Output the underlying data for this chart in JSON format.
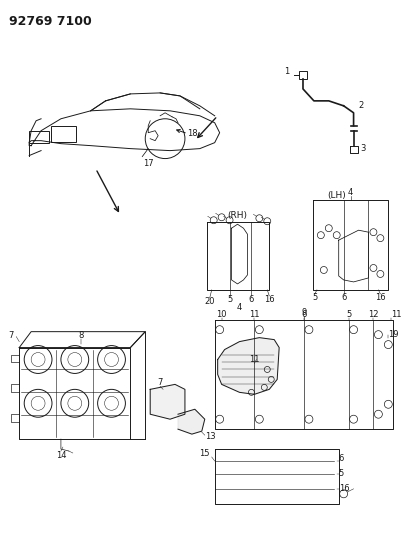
{
  "title": "92769 7100",
  "bg_color": "#ffffff",
  "line_color": "#1a1a1a",
  "title_fontsize": 9,
  "label_fontsize": 6.5,
  "fig_width": 4.06,
  "fig_height": 5.33,
  "dpi": 100
}
